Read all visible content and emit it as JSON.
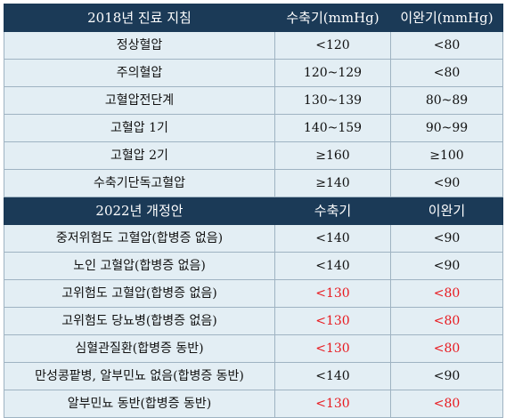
{
  "section_2018": {
    "headers": [
      "2018년 진료 지침",
      "수축기(mmHg)",
      "이완기(mmHg)"
    ],
    "rows": [
      {
        "label": "정상혈압",
        "systolic": "<120",
        "diastolic": "<80",
        "red": false
      },
      {
        "label": "주의혈압",
        "systolic": "120~129",
        "diastolic": "<80",
        "red": false
      },
      {
        "label": "고혈압전단계",
        "systolic": "130~139",
        "diastolic": "80~89",
        "red": false
      },
      {
        "label": "고혈압 1기",
        "systolic": "140~159",
        "diastolic": "90~99",
        "red": false
      },
      {
        "label": "고혈압 2기",
        "systolic": "≥160",
        "diastolic": "≥100",
        "red": false
      },
      {
        "label": "수축기단독고혈압",
        "systolic": "≥140",
        "diastolic": "<90",
        "red": false
      }
    ]
  },
  "section_2022": {
    "headers": [
      "2022년 개정안",
      "수축기",
      "이완기"
    ],
    "rows": [
      {
        "label": "중저위험도 고혈압(합병증 없음)",
        "systolic": "<140",
        "diastolic": "<90",
        "red": false
      },
      {
        "label": "노인 고혈압(합병증 없음)",
        "systolic": "<140",
        "diastolic": "<90",
        "red": false
      },
      {
        "label": "고위험도 고혈압(합병증 없음)",
        "systolic": "<130",
        "diastolic": "<80",
        "red": true
      },
      {
        "label": "고위험도 당뇨병(합병증 없음)",
        "systolic": "<130",
        "diastolic": "<80",
        "red": true
      },
      {
        "label": "심혈관질환(합병증 동반)",
        "systolic": "<130",
        "diastolic": "<80",
        "red": true
      },
      {
        "label": "만성콩팥병, 알부민뇨 없음(합병증 동반)",
        "systolic": "<140",
        "diastolic": "<90",
        "red": false
      },
      {
        "label": "알부민뇨 동반(합병증 동반)",
        "systolic": "<130",
        "diastolic": "<80",
        "red": true
      }
    ]
  },
  "colors": {
    "header_bg": "#1b3a57",
    "row_bg": "#e3eef4",
    "highlight_red": "#e8181e"
  }
}
